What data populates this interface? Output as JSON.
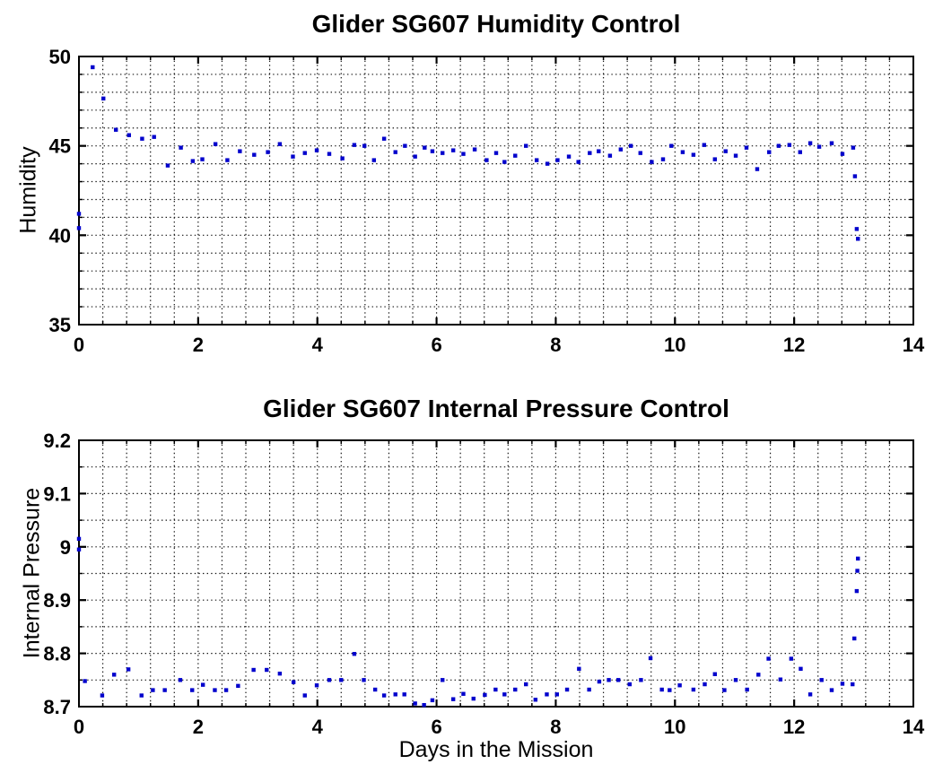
{
  "figure": {
    "background": "#ffffff",
    "axis_color": "#000000",
    "grid_style": "dotted"
  },
  "chart_data": [
    {
      "type": "scatter",
      "title": "Glider SG607 Humidity Control",
      "xlabel": "",
      "ylabel": "Humidity",
      "xlim": [
        0,
        14
      ],
      "ylim": [
        35,
        50
      ],
      "xticks": [
        0,
        2,
        4,
        6,
        8,
        10,
        12,
        14
      ],
      "xtick_labels": [
        "0",
        "2",
        "4",
        "6",
        "8",
        "10",
        "12",
        "14"
      ],
      "yticks": [
        35,
        40,
        45,
        50
      ],
      "ytick_labels": [
        "35",
        "40",
        "45",
        "50"
      ],
      "x_minor_step": 0.4,
      "y_minor_step": 1,
      "grid": "minor-dotted",
      "legend": "none",
      "marker": "dot",
      "marker_color": "#0000CC",
      "points": [
        [
          0.0,
          41.2
        ],
        [
          0.0,
          40.4
        ],
        [
          0.23,
          49.4
        ],
        [
          0.41,
          47.65
        ],
        [
          0.62,
          45.9
        ],
        [
          0.84,
          45.6
        ],
        [
          1.06,
          45.4
        ],
        [
          1.26,
          45.5
        ],
        [
          1.49,
          43.9
        ],
        [
          1.71,
          44.9
        ],
        [
          1.91,
          44.15
        ],
        [
          2.07,
          44.25
        ],
        [
          2.29,
          45.1
        ],
        [
          2.49,
          44.2
        ],
        [
          2.7,
          44.7
        ],
        [
          2.94,
          44.5
        ],
        [
          3.17,
          44.65
        ],
        [
          3.37,
          45.1
        ],
        [
          3.59,
          44.4
        ],
        [
          3.79,
          44.6
        ],
        [
          3.99,
          44.75
        ],
        [
          4.2,
          44.55
        ],
        [
          4.42,
          44.3
        ],
        [
          4.62,
          45.05
        ],
        [
          4.79,
          45.0
        ],
        [
          4.95,
          44.2
        ],
        [
          5.12,
          45.4
        ],
        [
          5.31,
          44.65
        ],
        [
          5.47,
          45.0
        ],
        [
          5.64,
          44.4
        ],
        [
          5.8,
          44.9
        ],
        [
          5.93,
          44.7
        ],
        [
          6.1,
          44.6
        ],
        [
          6.28,
          44.75
        ],
        [
          6.45,
          44.55
        ],
        [
          6.64,
          44.8
        ],
        [
          6.84,
          44.2
        ],
        [
          7.0,
          44.6
        ],
        [
          7.14,
          44.1
        ],
        [
          7.32,
          44.45
        ],
        [
          7.5,
          45.0
        ],
        [
          7.68,
          44.2
        ],
        [
          7.86,
          44.0
        ],
        [
          8.03,
          44.2
        ],
        [
          8.22,
          44.4
        ],
        [
          8.38,
          44.1
        ],
        [
          8.57,
          44.6
        ],
        [
          8.72,
          44.7
        ],
        [
          8.91,
          44.45
        ],
        [
          9.09,
          44.8
        ],
        [
          9.26,
          45.0
        ],
        [
          9.42,
          44.6
        ],
        [
          9.61,
          44.1
        ],
        [
          9.8,
          44.25
        ],
        [
          9.94,
          45.0
        ],
        [
          10.13,
          44.65
        ],
        [
          10.31,
          44.5
        ],
        [
          10.49,
          45.05
        ],
        [
          10.67,
          44.25
        ],
        [
          10.85,
          44.7
        ],
        [
          11.02,
          44.45
        ],
        [
          11.2,
          44.9
        ],
        [
          11.38,
          43.7
        ],
        [
          11.58,
          44.65
        ],
        [
          11.74,
          45.0
        ],
        [
          11.92,
          45.05
        ],
        [
          12.1,
          44.65
        ],
        [
          12.27,
          45.15
        ],
        [
          12.42,
          44.95
        ],
        [
          12.63,
          45.15
        ],
        [
          12.81,
          44.55
        ],
        [
          12.99,
          44.9
        ],
        [
          13.02,
          43.3
        ],
        [
          13.05,
          40.35
        ],
        [
          13.07,
          39.8
        ]
      ]
    },
    {
      "type": "scatter",
      "title": "Glider SG607 Internal Pressure Control",
      "xlabel": "Days in the Mission",
      "ylabel": "Internal Pressure",
      "xlim": [
        0,
        14
      ],
      "ylim": [
        8.7,
        9.2
      ],
      "xticks": [
        0,
        2,
        4,
        6,
        8,
        10,
        12,
        14
      ],
      "xtick_labels": [
        "0",
        "2",
        "4",
        "6",
        "8",
        "10",
        "12",
        "14"
      ],
      "yticks": [
        8.7,
        8.8,
        8.9,
        9.0,
        9.1,
        9.2
      ],
      "ytick_labels": [
        "8.7",
        "8.8",
        "8.9",
        "9",
        "9.1",
        "9.2"
      ],
      "x_minor_step": 0.4,
      "y_minor_step": 0.05,
      "grid": "minor-dotted",
      "legend": "none",
      "marker": "dot",
      "marker_color": "#0000CC",
      "points": [
        [
          0.0,
          9.015
        ],
        [
          0.0,
          8.995
        ],
        [
          0.1,
          8.748
        ],
        [
          0.39,
          8.721
        ],
        [
          0.59,
          8.76
        ],
        [
          0.83,
          8.77
        ],
        [
          1.05,
          8.721
        ],
        [
          1.24,
          8.731
        ],
        [
          1.44,
          8.731
        ],
        [
          1.7,
          8.75
        ],
        [
          1.9,
          8.731
        ],
        [
          2.08,
          8.741
        ],
        [
          2.28,
          8.731
        ],
        [
          2.47,
          8.731
        ],
        [
          2.67,
          8.739
        ],
        [
          2.93,
          8.769
        ],
        [
          3.15,
          8.769
        ],
        [
          3.37,
          8.762
        ],
        [
          3.6,
          8.746
        ],
        [
          3.79,
          8.721
        ],
        [
          3.99,
          8.74
        ],
        [
          4.2,
          8.75
        ],
        [
          4.4,
          8.75
        ],
        [
          4.62,
          8.799
        ],
        [
          4.78,
          8.75
        ],
        [
          4.97,
          8.732
        ],
        [
          5.12,
          8.721
        ],
        [
          5.31,
          8.723
        ],
        [
          5.46,
          8.723
        ],
        [
          5.64,
          8.706
        ],
        [
          5.79,
          8.703
        ],
        [
          5.93,
          8.712
        ],
        [
          6.1,
          8.75
        ],
        [
          6.28,
          8.714
        ],
        [
          6.45,
          8.724
        ],
        [
          6.62,
          8.715
        ],
        [
          6.81,
          8.722
        ],
        [
          6.99,
          8.732
        ],
        [
          7.14,
          8.723
        ],
        [
          7.32,
          8.732
        ],
        [
          7.5,
          8.742
        ],
        [
          7.66,
          8.713
        ],
        [
          7.85,
          8.723
        ],
        [
          8.02,
          8.723
        ],
        [
          8.19,
          8.732
        ],
        [
          8.39,
          8.771
        ],
        [
          8.56,
          8.732
        ],
        [
          8.73,
          8.747
        ],
        [
          8.89,
          8.75
        ],
        [
          9.05,
          8.75
        ],
        [
          9.24,
          8.742
        ],
        [
          9.43,
          8.75
        ],
        [
          9.59,
          8.791
        ],
        [
          9.78,
          8.732
        ],
        [
          9.91,
          8.731
        ],
        [
          10.08,
          8.74
        ],
        [
          10.31,
          8.732
        ],
        [
          10.5,
          8.742
        ],
        [
          10.67,
          8.761
        ],
        [
          10.83,
          8.731
        ],
        [
          11.02,
          8.75
        ],
        [
          11.21,
          8.732
        ],
        [
          11.4,
          8.76
        ],
        [
          11.57,
          8.79
        ],
        [
          11.77,
          8.751
        ],
        [
          11.95,
          8.79
        ],
        [
          12.11,
          8.771
        ],
        [
          12.27,
          8.723
        ],
        [
          12.46,
          8.75
        ],
        [
          12.63,
          8.731
        ],
        [
          12.81,
          8.743
        ],
        [
          12.98,
          8.742
        ],
        [
          13.01,
          8.828
        ],
        [
          13.05,
          8.917
        ],
        [
          13.06,
          8.955
        ],
        [
          13.07,
          8.978
        ]
      ]
    }
  ]
}
